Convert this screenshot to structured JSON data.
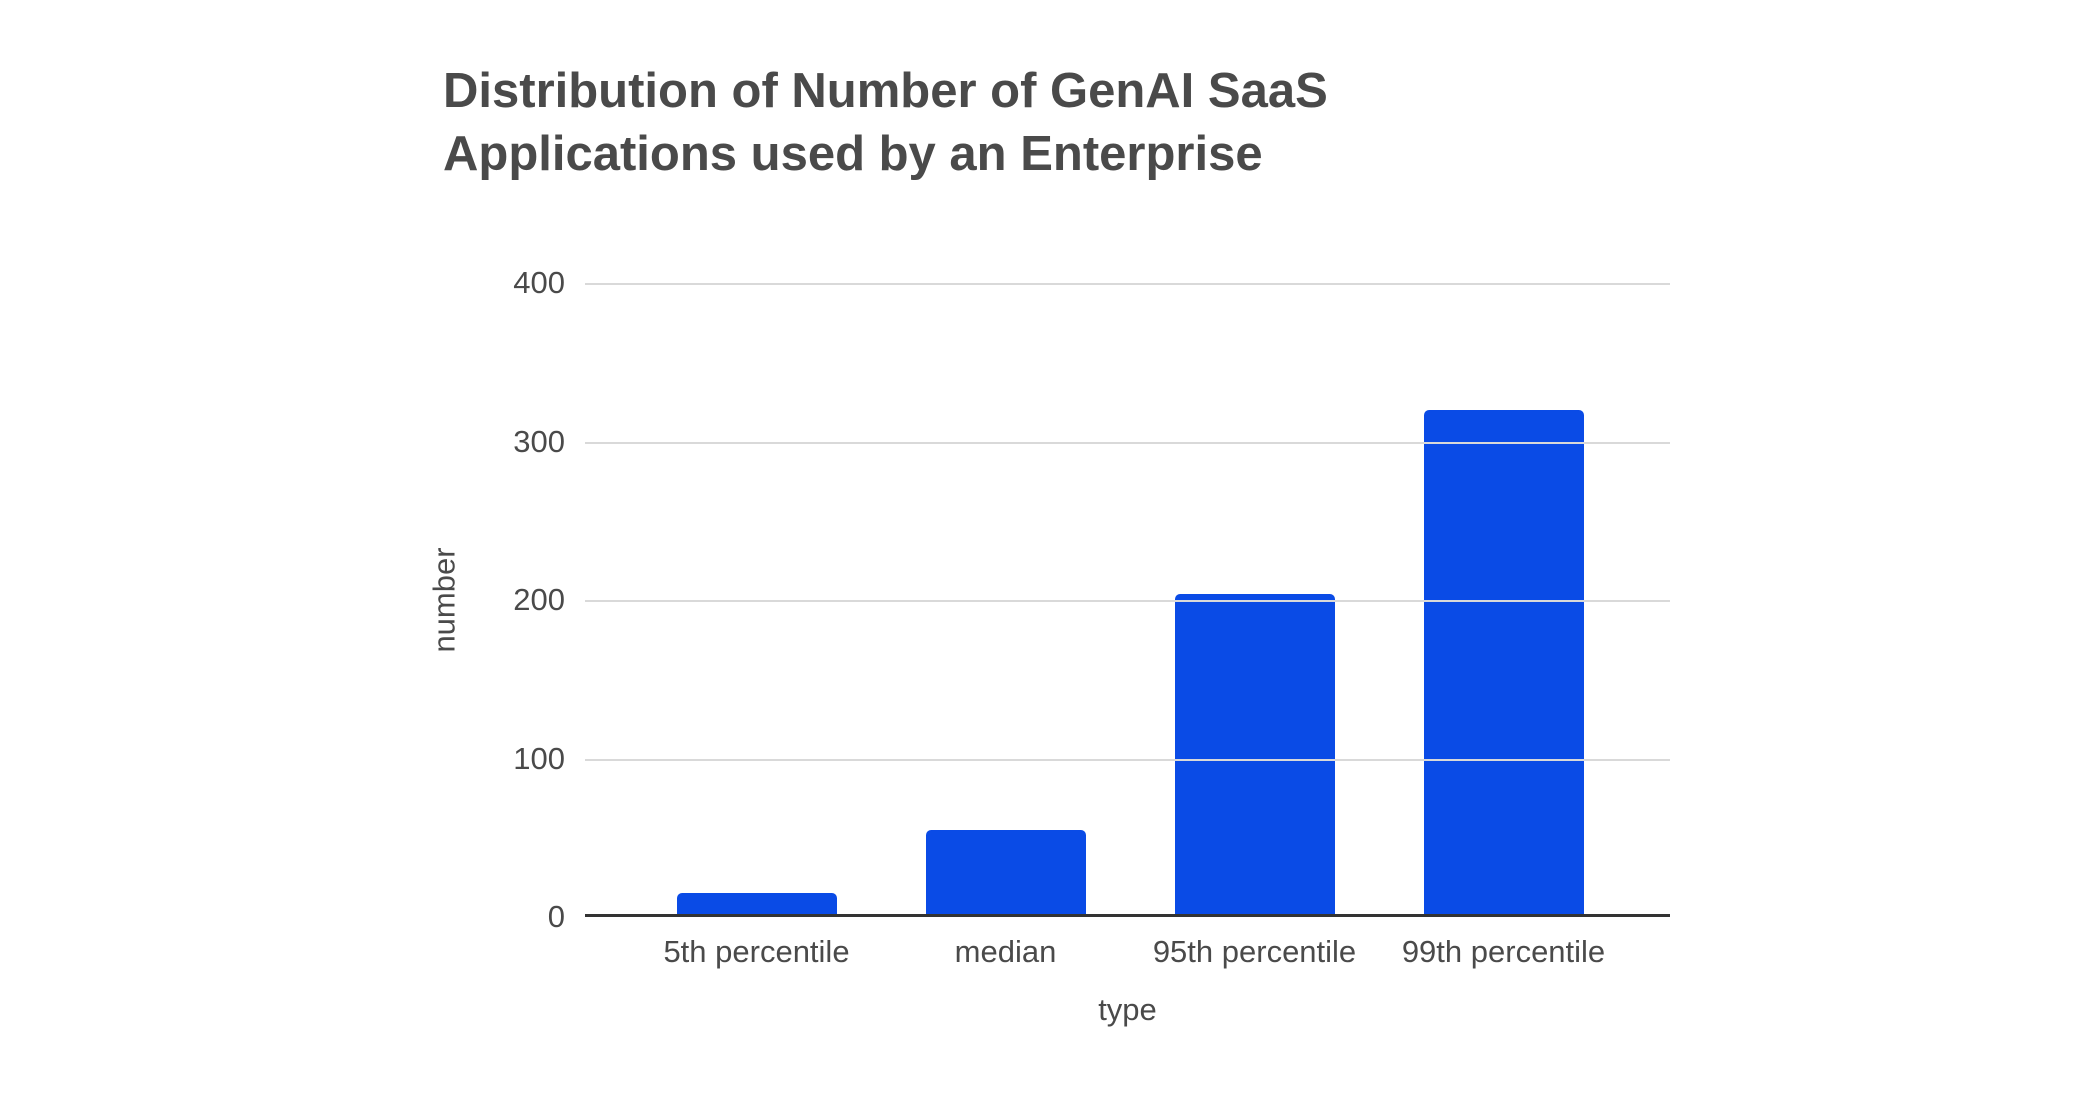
{
  "title": "Distribution of Number of GenAI SaaS Applications used by an Enterprise",
  "chart_data": {
    "type": "bar",
    "title": "Distribution of Number of GenAI SaaS Applications used by an Enterprise",
    "categories": [
      "5th percentile",
      "median",
      "95th percentile",
      "99th percentile"
    ],
    "values": [
      13,
      53,
      202,
      318
    ],
    "xlabel": "type",
    "ylabel": "number",
    "ylim": [
      0,
      400
    ],
    "yticks": [
      400,
      300,
      200,
      100,
      0
    ],
    "grid": true,
    "legend": "none",
    "bar_color": "#0a4be6",
    "gridline_color": "#d9d9d9",
    "axis_line_color": "#333333",
    "text_color": "#4a4a4a",
    "background_color": "#ffffff"
  }
}
